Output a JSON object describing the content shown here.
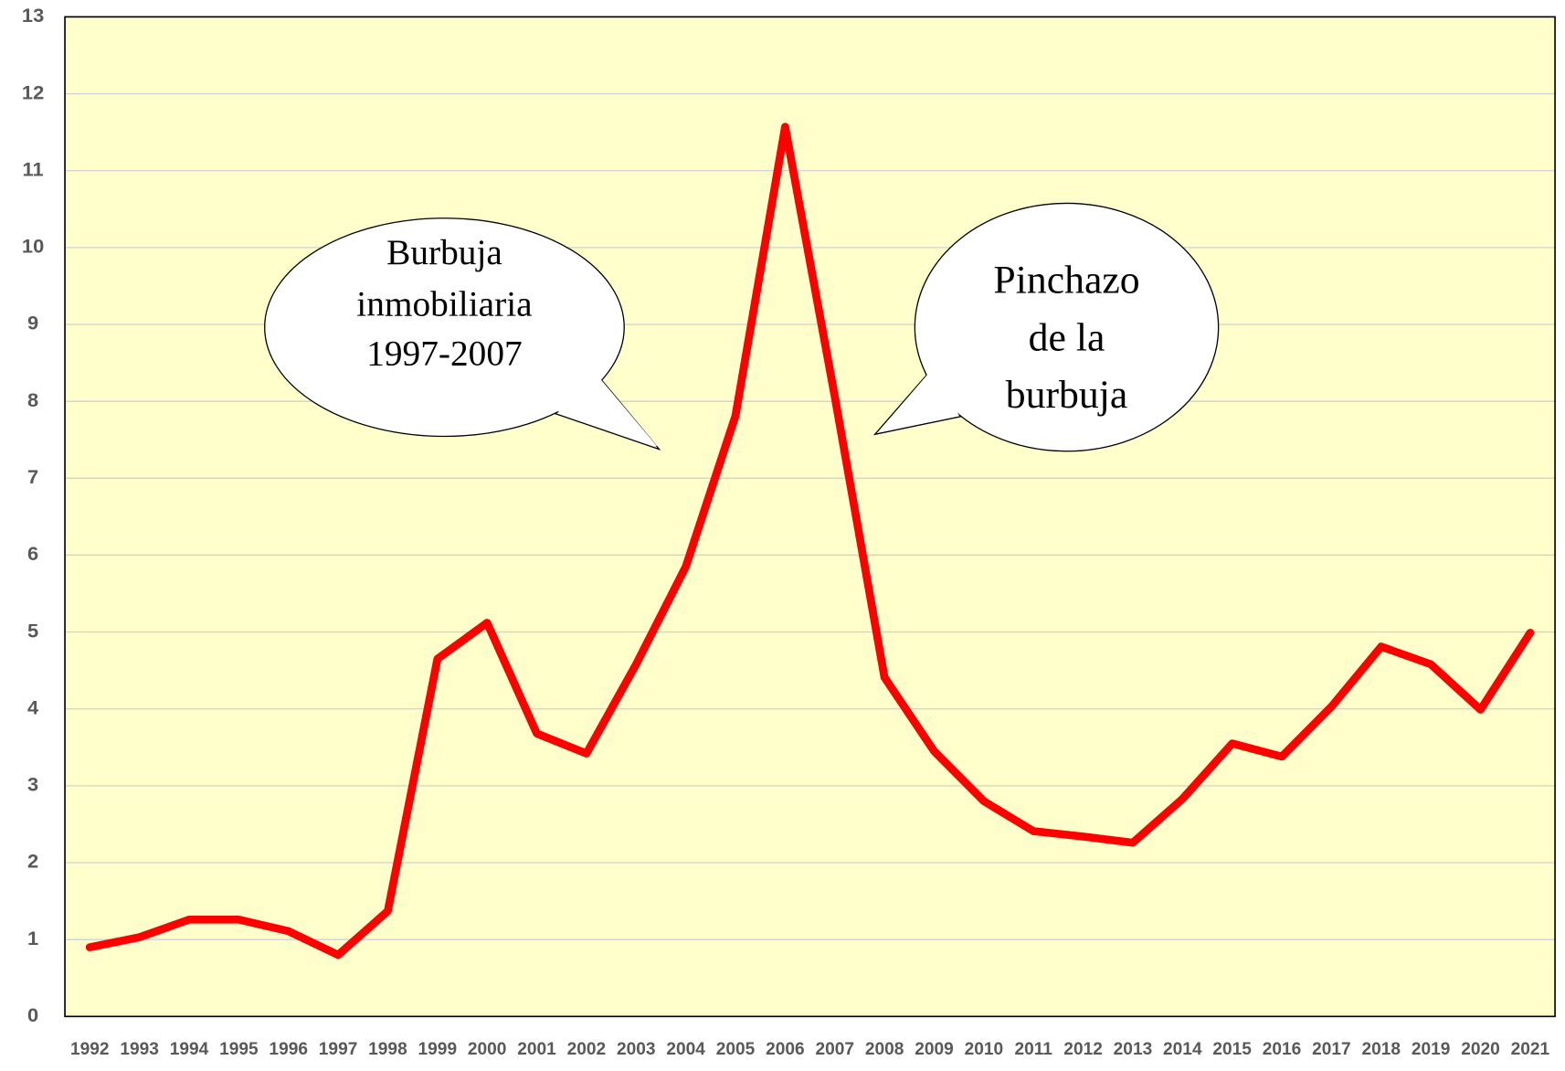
{
  "chart_data": {
    "type": "line",
    "categories": [
      "1992",
      "1993",
      "1994",
      "1995",
      "1996",
      "1997",
      "1998",
      "1999",
      "2000",
      "2001",
      "2002",
      "2003",
      "2004",
      "2005",
      "2006",
      "2007",
      "2008",
      "2009",
      "2010",
      "2011",
      "2012",
      "2013",
      "2014",
      "2015",
      "2016",
      "2017",
      "2018",
      "2019",
      "2020",
      "2021"
    ],
    "series": [
      {
        "color": "#ff0000",
        "values": [
          0.9,
          1.03,
          1.26,
          1.26,
          1.11,
          0.8,
          1.37,
          4.65,
          5.12,
          3.68,
          3.42,
          4.58,
          5.85,
          7.81,
          11.57,
          8.06,
          4.41,
          3.45,
          2.8,
          2.41,
          2.34,
          2.26,
          2.83,
          3.55,
          3.38,
          4.03,
          4.81,
          4.58,
          3.99,
          4.99
        ]
      }
    ],
    "ylim": [
      0,
      13
    ],
    "yticks": [
      0,
      1,
      2,
      3,
      4,
      5,
      6,
      7,
      8,
      9,
      10,
      11,
      12,
      13
    ],
    "grid": true,
    "annotations": [
      {
        "lines": [
          "Burbuja",
          "inmobiliaria",
          "1997-2007"
        ]
      },
      {
        "lines": [
          "Pinchazo",
          "de la",
          "burbuja"
        ]
      }
    ]
  }
}
